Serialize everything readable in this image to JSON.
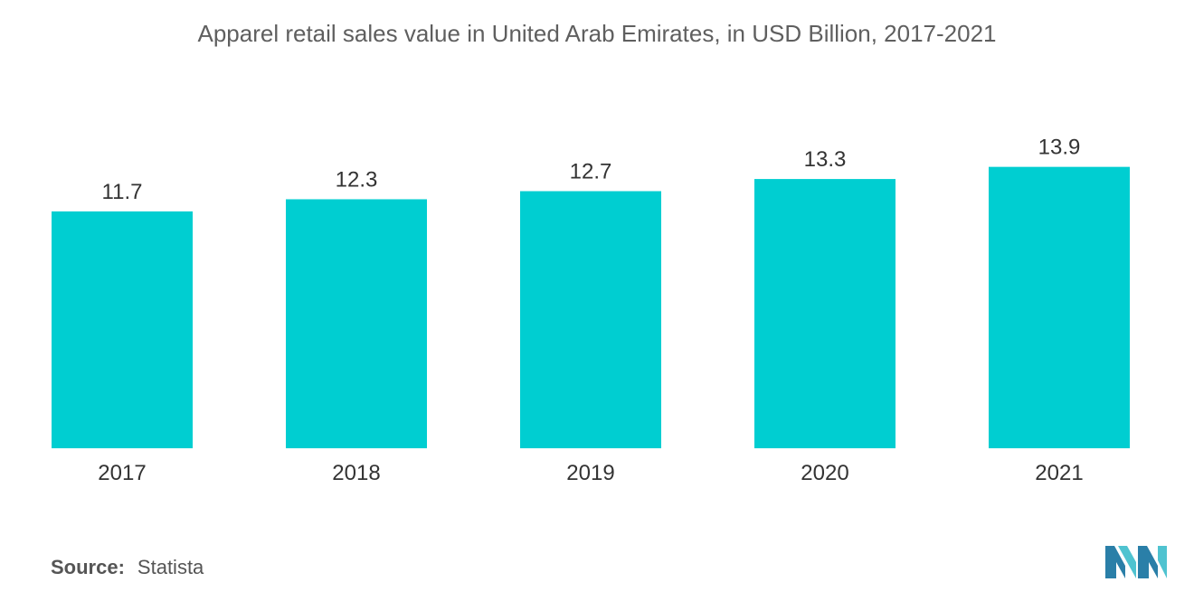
{
  "chart_data": {
    "type": "bar",
    "title": "Apparel retail sales value in United Arab Emirates, in USD Billion, 2017-2021",
    "categories": [
      "2017",
      "2018",
      "2019",
      "2020",
      "2021"
    ],
    "values": [
      11.7,
      12.3,
      12.7,
      13.3,
      13.9
    ],
    "value_labels": [
      "11.7",
      "12.3",
      "12.7",
      "13.3",
      "13.9"
    ],
    "xlabel": "",
    "ylabel": "",
    "grid": false,
    "legend": "none",
    "bar_color": "#00CED1"
  },
  "source": {
    "key": "Source:",
    "value": "Statista"
  },
  "logo": {
    "icon": "mordor-intelligence-logo-icon",
    "color": "#2A7FA8",
    "accent": "#4FC3D0"
  }
}
